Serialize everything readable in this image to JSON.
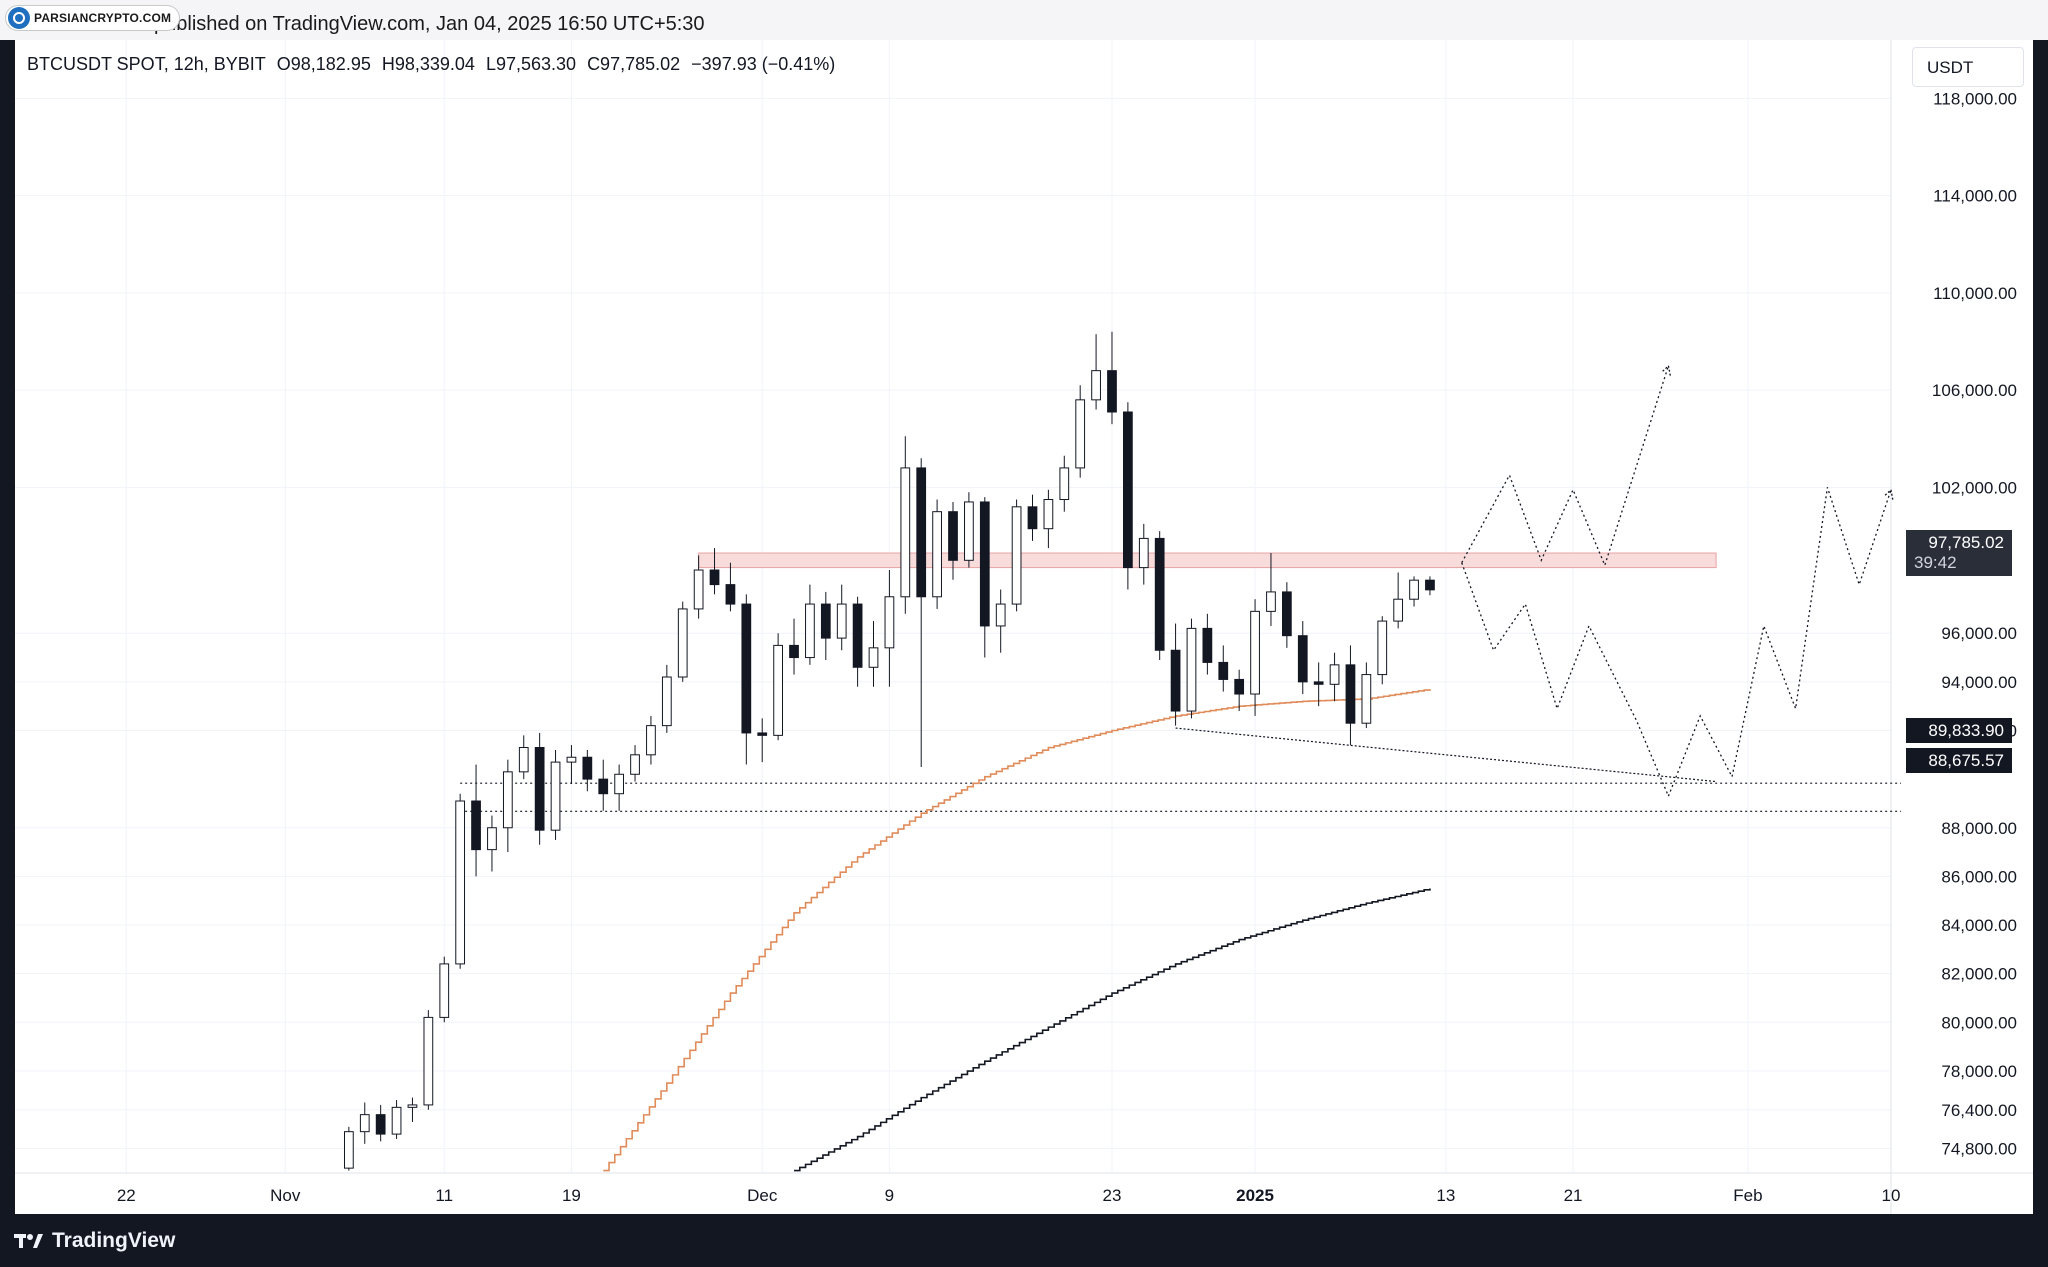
{
  "header": {
    "logo_text": "PARSIANCRYPTO.COM",
    "published_text": "published on TradingView.com, Jan 04, 2025 16:50 UTC+5:30"
  },
  "legend": {
    "symbol": "BTCUSDT SPOT, 12h, BYBIT",
    "open": "O98,182.95",
    "high": "H98,339.04",
    "low": "L97,563.30",
    "close": "C97,785.02",
    "change": "−397.93 (−0.41%)"
  },
  "currency_button": "USDT",
  "price_tags": {
    "current_price": "97,785.02",
    "countdown": "39:42",
    "level_1": "89,833.90",
    "level_2": "88,675.57"
  },
  "footer": {
    "brand": "TradingView"
  },
  "colors": {
    "up_candle": "#ffffff",
    "down_candle": "#131722",
    "ma_fast": "#e08c5a",
    "ma_slow": "#131722",
    "resistance_zone": "#f8dcdc",
    "grid": "#f0f3fa"
  },
  "chart_data": {
    "type": "candlestick",
    "title": "BTCUSDT SPOT, 12h, BYBIT",
    "y_axis": {
      "ticks": [
        118000,
        114000,
        110000,
        106000,
        102000,
        96000,
        94000,
        92000,
        88000,
        86000,
        84000,
        82000,
        80000,
        78000,
        76400,
        74800
      ],
      "tick_labels": [
        "118,000.00",
        "114,000.00",
        "110,000.00",
        "106,000.00",
        "102,000.00",
        "96,000.00",
        "94,000.00",
        "92,000.00",
        "88,000.00",
        "86,000.00",
        "84,000.00",
        "82,000.00",
        "80,000.00",
        "78,000.00",
        "76,400.00",
        "74,800.00"
      ],
      "range": [
        73800,
        120400
      ]
    },
    "x_axis": {
      "ticks": [
        "2024-10-22",
        "2024-11-01",
        "2024-11-11",
        "2024-11-19",
        "2024-12-01",
        "2024-12-09",
        "2024-12-23",
        "2025-01-01",
        "2025-01-13",
        "2025-01-21",
        "2025-02-01",
        "2025-02-10"
      ],
      "tick_labels": [
        "22",
        "Nov",
        "11",
        "19",
        "Dec",
        "9",
        "23",
        "2025",
        "13",
        "21",
        "Feb",
        "10"
      ],
      "range": [
        "2024-10-15",
        "2025-02-10"
      ]
    },
    "ohlc": [
      {
        "t": "2024-11-05",
        "o": 74000,
        "h": 75700,
        "l": 73900,
        "c": 75500
      },
      {
        "t": "2024-11-06",
        "o": 75500,
        "h": 76700,
        "l": 75000,
        "c": 76200
      },
      {
        "t": "2024-11-07",
        "o": 76200,
        "h": 76600,
        "l": 75100,
        "c": 75400
      },
      {
        "t": "2024-11-08",
        "o": 75400,
        "h": 76800,
        "l": 75200,
        "c": 76500
      },
      {
        "t": "2024-11-09",
        "o": 76500,
        "h": 76900,
        "l": 75900,
        "c": 76600
      },
      {
        "t": "2024-11-10",
        "o": 76600,
        "h": 80500,
        "l": 76400,
        "c": 80200
      },
      {
        "t": "2024-11-11",
        "o": 80200,
        "h": 82700,
        "l": 80000,
        "c": 82400
      },
      {
        "t": "2024-11-12",
        "o": 82400,
        "h": 89400,
        "l": 82200,
        "c": 89100
      },
      {
        "t": "2024-11-13",
        "o": 89100,
        "h": 90600,
        "l": 86000,
        "c": 87100
      },
      {
        "t": "2024-11-14",
        "o": 87100,
        "h": 88500,
        "l": 86200,
        "c": 88000
      },
      {
        "t": "2024-11-15",
        "o": 88000,
        "h": 90800,
        "l": 87000,
        "c": 90300
      },
      {
        "t": "2024-11-16",
        "o": 90300,
        "h": 91800,
        "l": 90000,
        "c": 91300
      },
      {
        "t": "2024-11-17",
        "o": 91300,
        "h": 91900,
        "l": 87300,
        "c": 87900
      },
      {
        "t": "2024-11-18",
        "o": 87900,
        "h": 91200,
        "l": 87500,
        "c": 90700
      },
      {
        "t": "2024-11-19",
        "o": 90700,
        "h": 91400,
        "l": 89800,
        "c": 90900
      },
      {
        "t": "2024-11-20",
        "o": 90900,
        "h": 91200,
        "l": 89500,
        "c": 90000
      },
      {
        "t": "2024-11-21",
        "o": 90000,
        "h": 90800,
        "l": 88700,
        "c": 89400
      },
      {
        "t": "2024-11-22",
        "o": 89400,
        "h": 90600,
        "l": 88700,
        "c": 90200
      },
      {
        "t": "2024-11-23",
        "o": 90200,
        "h": 91400,
        "l": 89900,
        "c": 91000
      },
      {
        "t": "2024-11-24",
        "o": 91000,
        "h": 92600,
        "l": 90600,
        "c": 92200
      },
      {
        "t": "2024-11-25",
        "o": 92200,
        "h": 94700,
        "l": 91900,
        "c": 94200
      },
      {
        "t": "2024-11-26",
        "o": 94200,
        "h": 97300,
        "l": 94000,
        "c": 97000
      },
      {
        "t": "2024-11-27",
        "o": 97000,
        "h": 99200,
        "l": 96600,
        "c": 98600
      },
      {
        "t": "2024-11-28",
        "o": 98600,
        "h": 99500,
        "l": 97600,
        "c": 98000
      },
      {
        "t": "2024-11-29",
        "o": 98000,
        "h": 98900,
        "l": 96900,
        "c": 97200
      },
      {
        "t": "2024-11-30",
        "o": 97200,
        "h": 97600,
        "l": 90600,
        "c": 91900
      },
      {
        "t": "2024-12-01",
        "o": 91900,
        "h": 92500,
        "l": 90700,
        "c": 91800
      },
      {
        "t": "2024-12-02",
        "o": 91800,
        "h": 96000,
        "l": 91600,
        "c": 95500
      },
      {
        "t": "2024-12-03",
        "o": 95500,
        "h": 96600,
        "l": 94300,
        "c": 95000
      },
      {
        "t": "2024-12-04",
        "o": 95000,
        "h": 98000,
        "l": 94700,
        "c": 97200
      },
      {
        "t": "2024-12-05",
        "o": 97200,
        "h": 97700,
        "l": 94900,
        "c": 95800
      },
      {
        "t": "2024-12-06",
        "o": 95800,
        "h": 98000,
        "l": 95300,
        "c": 97200
      },
      {
        "t": "2024-12-07",
        "o": 97200,
        "h": 97500,
        "l": 93800,
        "c": 94600
      },
      {
        "t": "2024-12-08",
        "o": 94600,
        "h": 96500,
        "l": 93800,
        "c": 95400
      },
      {
        "t": "2024-12-09",
        "o": 95400,
        "h": 98600,
        "l": 93800,
        "c": 97500
      },
      {
        "t": "2024-12-10",
        "o": 97500,
        "h": 104100,
        "l": 96800,
        "c": 102800
      },
      {
        "t": "2024-12-11",
        "o": 102800,
        "h": 103200,
        "l": 90500,
        "c": 97500
      },
      {
        "t": "2024-12-12",
        "o": 97500,
        "h": 101500,
        "l": 97000,
        "c": 101000
      },
      {
        "t": "2024-12-13",
        "o": 101000,
        "h": 101400,
        "l": 98200,
        "c": 99000
      },
      {
        "t": "2024-12-14",
        "o": 99000,
        "h": 101800,
        "l": 98700,
        "c": 101400
      },
      {
        "t": "2024-12-15",
        "o": 101400,
        "h": 101600,
        "l": 95000,
        "c": 96300
      },
      {
        "t": "2024-12-16",
        "o": 96300,
        "h": 97800,
        "l": 95200,
        "c": 97200
      },
      {
        "t": "2024-12-17",
        "o": 97200,
        "h": 101500,
        "l": 96900,
        "c": 101200
      },
      {
        "t": "2024-12-18",
        "o": 101200,
        "h": 101700,
        "l": 99800,
        "c": 100300
      },
      {
        "t": "2024-12-19",
        "o": 100300,
        "h": 101900,
        "l": 99500,
        "c": 101500
      },
      {
        "t": "2024-12-20",
        "o": 101500,
        "h": 103300,
        "l": 101000,
        "c": 102800
      },
      {
        "t": "2024-12-21",
        "o": 102800,
        "h": 106200,
        "l": 102400,
        "c": 105600
      },
      {
        "t": "2024-12-22",
        "o": 105600,
        "h": 108300,
        "l": 105200,
        "c": 106800
      },
      {
        "t": "2024-12-23",
        "o": 106800,
        "h": 108400,
        "l": 104600,
        "c": 105100
      },
      {
        "t": "2024-12-24",
        "o": 105100,
        "h": 105500,
        "l": 97800,
        "c": 98700
      },
      {
        "t": "2024-12-25",
        "o": 98700,
        "h": 100500,
        "l": 98000,
        "c": 99900
      },
      {
        "t": "2024-12-26",
        "o": 99900,
        "h": 100200,
        "l": 94900,
        "c": 95300
      },
      {
        "t": "2024-12-27",
        "o": 95300,
        "h": 96400,
        "l": 92200,
        "c": 92800
      },
      {
        "t": "2024-12-28",
        "o": 92800,
        "h": 96600,
        "l": 92500,
        "c": 96200
      },
      {
        "t": "2024-12-29",
        "o": 96200,
        "h": 96800,
        "l": 94300,
        "c": 94800
      },
      {
        "t": "2024-12-30",
        "o": 94800,
        "h": 95500,
        "l": 93600,
        "c": 94100
      },
      {
        "t": "2024-12-31",
        "o": 94100,
        "h": 94500,
        "l": 92800,
        "c": 93500
      },
      {
        "t": "2025-01-01",
        "o": 93500,
        "h": 97400,
        "l": 92600,
        "c": 96900
      },
      {
        "t": "2025-01-02",
        "o": 96900,
        "h": 99300,
        "l": 96300,
        "c": 97700
      },
      {
        "t": "2025-01-03",
        "o": 97700,
        "h": 98100,
        "l": 95400,
        "c": 95900
      },
      {
        "t": "2025-01-04",
        "o": 95900,
        "h": 96500,
        "l": 93500,
        "c": 94000
      },
      {
        "t": "2025-01-05",
        "o": 94000,
        "h": 94800,
        "l": 93000,
        "c": 93900
      },
      {
        "t": "2025-01-06",
        "o": 93900,
        "h": 95200,
        "l": 93200,
        "c": 94700
      },
      {
        "t": "2025-01-07",
        "o": 94700,
        "h": 95500,
        "l": 91400,
        "c": 92300
      },
      {
        "t": "2025-01-08",
        "o": 92300,
        "h": 94800,
        "l": 92100,
        "c": 94300
      },
      {
        "t": "2025-01-09",
        "o": 94300,
        "h": 96700,
        "l": 93900,
        "c": 96500
      },
      {
        "t": "2025-01-10",
        "o": 96500,
        "h": 98500,
        "l": 96200,
        "c": 97400
      },
      {
        "t": "2025-01-11",
        "o": 97400,
        "h": 98339,
        "l": 97100,
        "c": 98183
      },
      {
        "t": "2025-01-12",
        "o": 98183,
        "h": 98339,
        "l": 97563,
        "c": 97785
      }
    ],
    "ma_fast": [
      [
        "2024-11-21",
        73900
      ],
      [
        "2024-11-25",
        77500
      ],
      [
        "2024-11-29",
        81200
      ],
      [
        "2024-12-03",
        84500
      ],
      [
        "2024-12-07",
        86800
      ],
      [
        "2024-12-11",
        88600
      ],
      [
        "2024-12-15",
        90100
      ],
      [
        "2024-12-19",
        91300
      ],
      [
        "2024-12-23",
        92000
      ],
      [
        "2024-12-27",
        92600
      ],
      [
        "2024-12-31",
        93000
      ],
      [
        "2025-01-04",
        93200
      ],
      [
        "2025-01-08",
        93300
      ],
      [
        "2025-01-12",
        93700
      ]
    ],
    "ma_slow": [
      [
        "2024-12-03",
        73900
      ],
      [
        "2024-12-07",
        75300
      ],
      [
        "2024-12-11",
        76900
      ],
      [
        "2024-12-15",
        78400
      ],
      [
        "2024-12-19",
        79800
      ],
      [
        "2024-12-23",
        81200
      ],
      [
        "2024-12-27",
        82400
      ],
      [
        "2024-12-31",
        83400
      ],
      [
        "2025-01-04",
        84200
      ],
      [
        "2025-01-08",
        84900
      ],
      [
        "2025-01-12",
        85500
      ]
    ],
    "resistance_zone": {
      "from": "2024-11-27",
      "to": "2025-01-30",
      "top": 99300,
      "bottom": 98700
    },
    "support_levels": [
      89833.9,
      88675.57
    ],
    "trendline": [
      [
        "2024-12-27",
        92100
      ],
      [
        "2025-01-30",
        89900
      ]
    ],
    "projection_a": [
      [
        "2025-01-14",
        98900
      ],
      [
        "2025-01-17",
        102500
      ],
      [
        "2025-01-19",
        99000
      ],
      [
        "2025-01-21",
        101900
      ],
      [
        "2025-01-23",
        98800
      ],
      [
        "2025-01-27",
        107000
      ]
    ],
    "projection_b": [
      [
        "2025-01-14",
        98900
      ],
      [
        "2025-01-16",
        95300
      ],
      [
        "2025-01-18",
        97200
      ],
      [
        "2025-01-20",
        92900
      ],
      [
        "2025-01-22",
        96300
      ],
      [
        "2025-01-25",
        92400
      ],
      [
        "2025-01-27",
        89300
      ],
      [
        "2025-01-29",
        92600
      ],
      [
        "2025-01-31",
        90100
      ],
      [
        "2025-02-02",
        96300
      ],
      [
        "2025-02-04",
        92900
      ],
      [
        "2025-02-06",
        102000
      ],
      [
        "2025-02-08",
        98000
      ],
      [
        "2025-02-10",
        101900
      ]
    ]
  }
}
